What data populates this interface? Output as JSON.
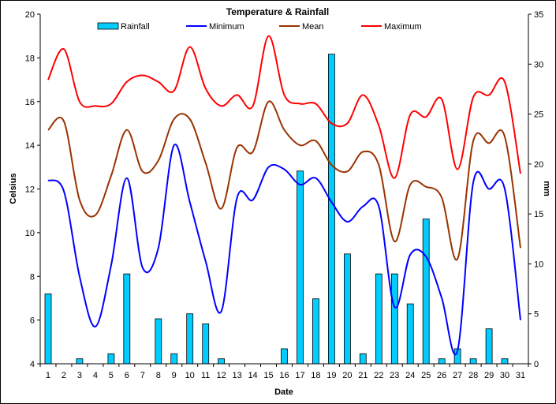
{
  "chart_data": {
    "type": "line",
    "title": "Temperature & Rainfall",
    "xlabel": "Date",
    "ylabel": "Celsius",
    "y2label": "mm",
    "x": [
      1,
      2,
      3,
      4,
      5,
      6,
      7,
      8,
      9,
      10,
      11,
      12,
      13,
      14,
      15,
      16,
      17,
      18,
      19,
      20,
      21,
      22,
      23,
      24,
      25,
      26,
      27,
      28,
      29,
      30,
      31
    ],
    "ylim": [
      4,
      20
    ],
    "y2lim": [
      0,
      35
    ],
    "yticks": [
      4,
      6,
      8,
      10,
      12,
      14,
      16,
      18,
      20
    ],
    "y2ticks": [
      0,
      5,
      10,
      15,
      20,
      25,
      30,
      35
    ],
    "grid": false,
    "legend_position": "top",
    "series": [
      {
        "name": "Rainfall",
        "type": "bar",
        "axis": "right",
        "color": "#00ccff",
        "values": [
          7,
          0,
          0.5,
          0,
          1,
          9,
          0,
          4.5,
          1,
          5,
          4,
          0.5,
          0,
          0,
          0,
          1.5,
          19.3,
          6.5,
          31,
          11,
          1,
          9,
          9,
          6,
          14.5,
          0.5,
          1.5,
          0.5,
          3.5,
          0.5,
          0
        ]
      },
      {
        "name": "Minimum",
        "type": "line",
        "axis": "left",
        "color": "#0000ff",
        "values": [
          12.4,
          11.9,
          8.0,
          5.7,
          8.5,
          12.5,
          8.4,
          9.3,
          14.0,
          11.4,
          8.7,
          6.4,
          11.6,
          11.5,
          13.0,
          12.9,
          12.2,
          12.5,
          11.4,
          10.5,
          11.2,
          11.2,
          6.6,
          9.0,
          8.9,
          7.0,
          4.6,
          12.3,
          12.0,
          12.0,
          6.0
        ]
      },
      {
        "name": "Mean",
        "type": "line",
        "axis": "left",
        "color": "#993300",
        "values": [
          14.7,
          15.1,
          11.5,
          10.8,
          12.6,
          14.7,
          12.8,
          13.3,
          15.2,
          15.2,
          13.2,
          11.1,
          13.9,
          13.7,
          16.0,
          14.7,
          14.0,
          14.2,
          13.1,
          12.8,
          13.7,
          13.1,
          9.6,
          12.2,
          12.1,
          11.6,
          8.8,
          14.2,
          14.1,
          14.4,
          9.3
        ]
      },
      {
        "name": "Maximum",
        "type": "line",
        "axis": "left",
        "color": "#ff0000",
        "values": [
          17.0,
          18.4,
          16.0,
          15.8,
          15.9,
          16.9,
          17.2,
          16.9,
          16.5,
          18.5,
          16.6,
          15.8,
          16.3,
          15.8,
          19.0,
          16.3,
          15.9,
          15.9,
          15.0,
          15.0,
          16.3,
          14.9,
          12.5,
          15.4,
          15.3,
          16.1,
          12.9,
          16.2,
          16.3,
          16.9,
          12.7
        ]
      }
    ]
  }
}
